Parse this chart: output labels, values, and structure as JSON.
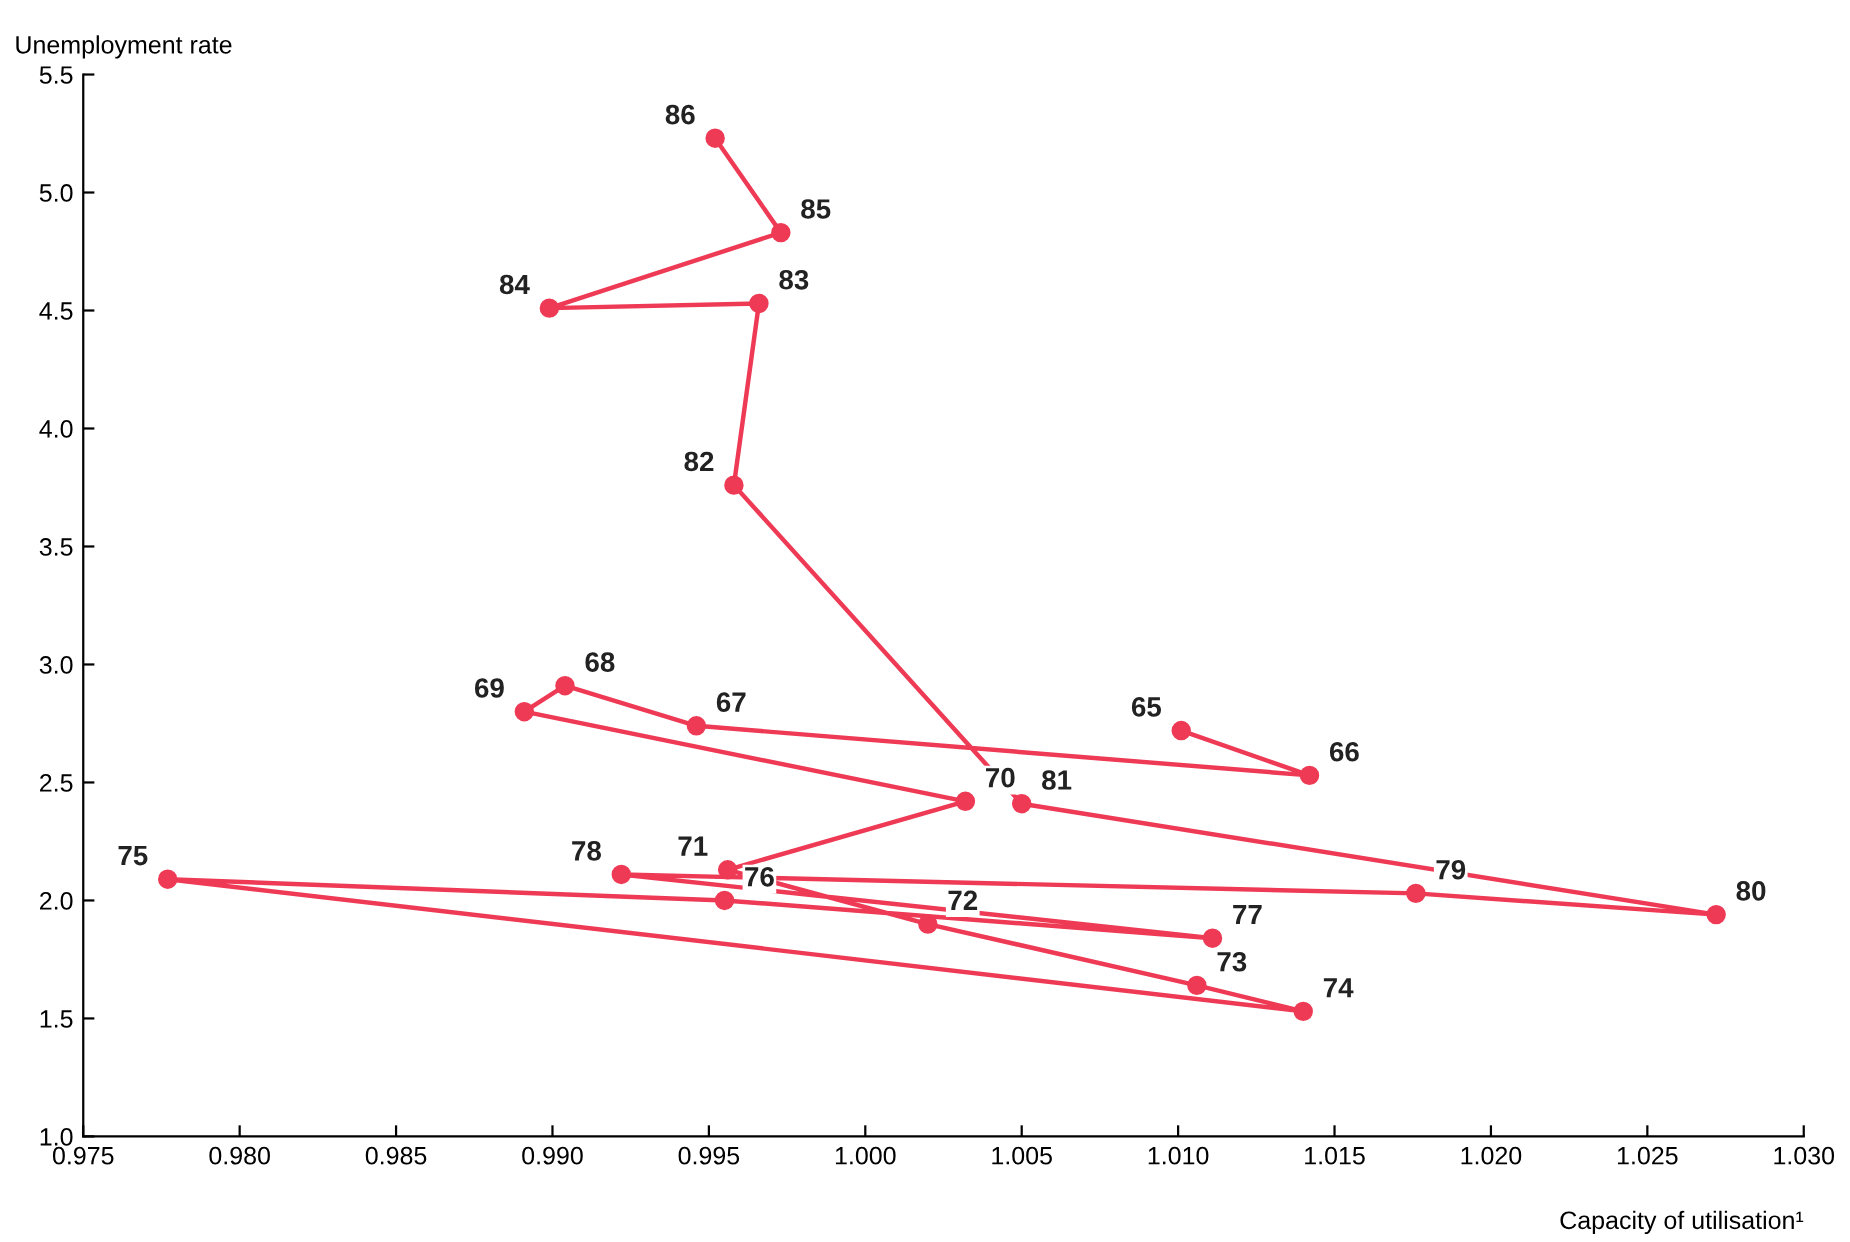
{
  "chart_data": {
    "type": "line",
    "xlabel": "Capacity of utilisation¹",
    "ylabel": "Unemployment rate",
    "marker": "circle",
    "line_style": "solid",
    "grid": false,
    "series": [
      {
        "color": "#ee3a55",
        "x": [
          1.0101,
          1.0142,
          0.9946,
          0.9904,
          0.9891,
          1.0032,
          0.9956,
          1.002,
          1.0106,
          1.014,
          0.9777,
          0.9955,
          1.0111,
          0.9922,
          1.0176,
          1.0272,
          1.005,
          0.9958,
          0.9966,
          0.9899,
          0.9973,
          0.9952
        ],
        "values": [
          2.72,
          2.53,
          2.74,
          2.91,
          2.8,
          2.42,
          2.13,
          1.9,
          1.64,
          1.53,
          2.09,
          2.0,
          1.84,
          2.11,
          2.03,
          1.94,
          2.41,
          3.76,
          4.53,
          4.51,
          4.83,
          5.23
        ]
      }
    ],
    "annotations": [
      {
        "text": "65",
        "x": 1.0101,
        "y": 2.72
      },
      {
        "text": "66",
        "x": 1.0142,
        "y": 2.53
      },
      {
        "text": "67",
        "x": 0.9946,
        "y": 2.74
      },
      {
        "text": "68",
        "x": 0.9904,
        "y": 2.91
      },
      {
        "text": "69",
        "x": 0.9891,
        "y": 2.8
      },
      {
        "text": "70",
        "x": 1.0032,
        "y": 2.42
      },
      {
        "text": "71",
        "x": 0.9956,
        "y": 2.13
      },
      {
        "text": "72",
        "x": 1.002,
        "y": 1.9
      },
      {
        "text": "73",
        "x": 1.0106,
        "y": 1.64
      },
      {
        "text": "74",
        "x": 1.014,
        "y": 1.53
      },
      {
        "text": "75",
        "x": 0.9777,
        "y": 2.09
      },
      {
        "text": "76",
        "x": 0.9955,
        "y": 2.0
      },
      {
        "text": "77",
        "x": 1.0111,
        "y": 1.84
      },
      {
        "text": "78",
        "x": 0.9922,
        "y": 2.11
      },
      {
        "text": "79",
        "x": 1.0176,
        "y": 2.03
      },
      {
        "text": "80",
        "x": 1.0272,
        "y": 1.94
      },
      {
        "text": "81",
        "x": 1.005,
        "y": 2.41
      },
      {
        "text": "82",
        "x": 0.9958,
        "y": 3.76
      },
      {
        "text": "83",
        "x": 0.9966,
        "y": 4.53
      },
      {
        "text": "84",
        "x": 0.9899,
        "y": 4.51
      },
      {
        "text": "85",
        "x": 0.9973,
        "y": 4.83
      },
      {
        "text": "86",
        "x": 0.9952,
        "y": 5.23
      }
    ],
    "xlim": [
      0.975,
      1.03
    ],
    "xticks": [
      {
        "value": 0.975,
        "label": "0.975"
      },
      {
        "value": 0.98,
        "label": "0.980"
      },
      {
        "value": 0.985,
        "label": "0.985"
      },
      {
        "value": 0.99,
        "label": "0.990"
      },
      {
        "value": 0.995,
        "label": "0.995"
      },
      {
        "value": 1.0,
        "label": "1.000"
      },
      {
        "value": 1.005,
        "label": "1.005"
      },
      {
        "value": 1.01,
        "label": "1.010"
      },
      {
        "value": 1.015,
        "label": "1.015"
      },
      {
        "value": 1.02,
        "label": "1.020"
      },
      {
        "value": 1.025,
        "label": "1.025"
      },
      {
        "value": 1.03,
        "label": "1.030"
      }
    ],
    "ylim": [
      1.0,
      5.5
    ],
    "yticks": [
      {
        "value": 1,
        "label": "1.0"
      },
      1.5,
      {
        "value": 2,
        "label": "2.0"
      },
      2.5,
      {
        "value": 3,
        "label": "3.0"
      },
      3.5,
      {
        "value": 4,
        "label": "4.0"
      },
      4.5,
      {
        "value": 5,
        "label": "5.0"
      },
      5.5
    ]
  }
}
